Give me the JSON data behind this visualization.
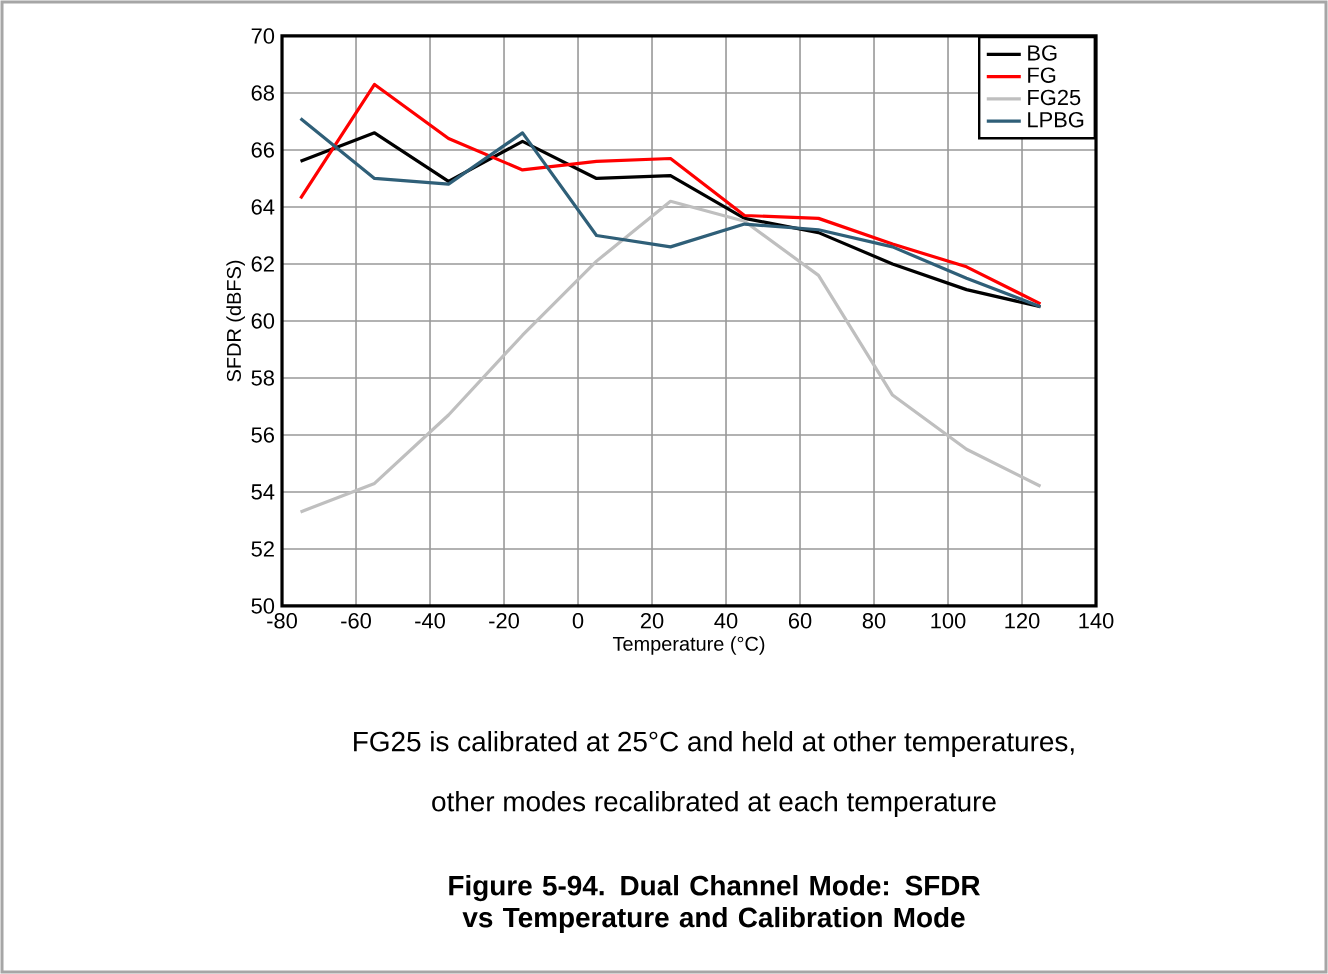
{
  "chart_data": {
    "type": "line",
    "title": "Figure 5-94. Dual Channel Mode: SFDR vs Temperature and Calibration Mode",
    "xlabel": "Temperature (°C)",
    "ylabel": "SFDR (dBFS)",
    "x": [
      -75,
      -55,
      -35,
      -15,
      5,
      25,
      45,
      65,
      85,
      105,
      125
    ],
    "series": [
      {
        "name": "BG",
        "color": "#000000",
        "values": [
          65.6,
          66.6,
          64.9,
          66.3,
          65.0,
          65.1,
          63.6,
          63.1,
          62.0,
          61.1,
          60.5
        ]
      },
      {
        "name": "FG",
        "color": "#ff0000",
        "values": [
          64.3,
          68.3,
          66.4,
          65.3,
          65.6,
          65.7,
          63.7,
          63.6,
          62.7,
          61.9,
          60.6
        ]
      },
      {
        "name": "FG25",
        "color": "#bfbfbf",
        "values": [
          53.3,
          54.3,
          56.7,
          59.5,
          62.1,
          64.2,
          63.5,
          61.6,
          57.4,
          55.5,
          54.2
        ]
      },
      {
        "name": "LPBG",
        "color": "#2f5f78",
        "values": [
          67.1,
          65.0,
          64.8,
          66.6,
          63.0,
          62.6,
          63.4,
          63.2,
          62.6,
          61.5,
          60.5
        ]
      }
    ],
    "xlim": [
      -80,
      140
    ],
    "xticks": [
      -80,
      -60,
      -40,
      -20,
      0,
      20,
      40,
      60,
      80,
      100,
      120,
      140
    ],
    "ylim": [
      50,
      70
    ],
    "yticks": [
      50,
      52,
      54,
      56,
      58,
      60,
      62,
      64,
      66,
      68,
      70
    ],
    "grid": true,
    "legend": "top right",
    "marker": "none",
    "line_style": "solid",
    "annotations": [
      "FG25 is calibrated at 25°C and held at other temperatures,",
      "other modes recalibrated at each temperature"
    ]
  }
}
